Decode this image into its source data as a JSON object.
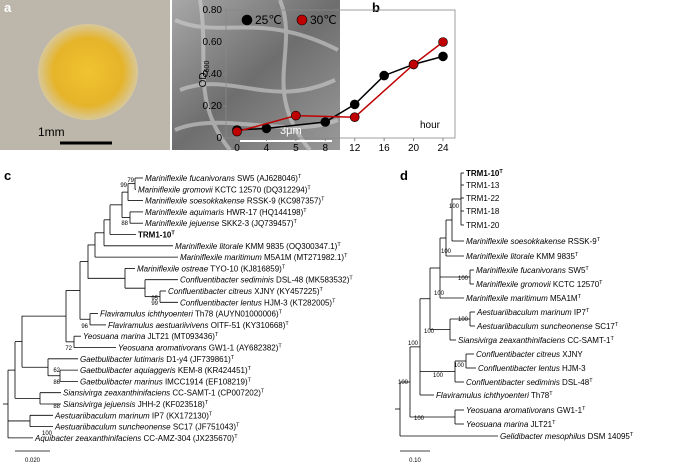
{
  "panel_labels": [
    "a",
    "b",
    "c",
    "d"
  ],
  "panel_a": {
    "scale_left": "1mm",
    "scale_right": "3μm"
  },
  "chart_data": {
    "type": "line",
    "categories": [
      "0",
      "4",
      "5",
      "8",
      "12",
      "16",
      "20",
      "24"
    ],
    "ylabel": "OD",
    "ylabel_sub": "600",
    "annotation": "hour",
    "legend": "upper left",
    "ylim": [
      0,
      0.8
    ],
    "yticks": [
      0,
      {
        "value": 0.2,
        "label": "0.20"
      },
      {
        "value": 0.4,
        "label": "0.40"
      },
      {
        "value": 0.6,
        "label": "0.60"
      },
      {
        "value": 0.8,
        "label": "0.80"
      }
    ],
    "series": [
      {
        "name": "25℃",
        "color": "#000000",
        "x": [
          "0",
          "4",
          "8",
          "12",
          "16",
          "20",
          "24"
        ],
        "values": [
          0.05,
          0.06,
          0.1,
          0.21,
          0.39,
          0.46,
          0.51
        ]
      },
      {
        "name": "30℃",
        "color": "#c00000",
        "x": [
          "0",
          "5",
          "12",
          "20",
          "24"
        ],
        "values": [
          0.04,
          0.14,
          0.13,
          0.46,
          0.6
        ]
      }
    ]
  },
  "tree_c": {
    "scale": "0.020",
    "bootstrap": [
      79,
      99,
      88,
      96,
      95,
      99,
      72,
      62,
      86,
      88,
      100
    ],
    "leaves": [
      {
        "species": "Mariniflexile fucanivorans",
        "strain": " SW5 (AJ628046)",
        "sup": "T"
      },
      {
        "species": "Mariniflexile gromovii",
        "strain": " KCTC 12570 (DQ312294)",
        "sup": "T"
      },
      {
        "species": "Mariniflexile soesokkakense",
        "strain": " RSSK-9 (KC987357)",
        "sup": "T"
      },
      {
        "species": "Mariniflexile aquimaris",
        "strain": " HWR-17 (HQ144198)",
        "sup": "T"
      },
      {
        "species": "Mariniflexile jejuense",
        "strain": " SKK2-3 (JQ739457)",
        "sup": "T"
      },
      {
        "name": "TRM1-10",
        "sup": "T",
        "bold": true
      },
      {
        "species": "Mariniflexile litorale",
        "strain": " KMM 9835 (OQ300347.1)",
        "sup": "T"
      },
      {
        "species": "Mariniflexile maritimum",
        "strain": " M5A1M (MT271982.1)",
        "sup": "T"
      },
      {
        "species": "Mariniflexile ostreae",
        "strain": " TYO-10 (KJ816859)",
        "sup": "T"
      },
      {
        "species": "Confluentibacter sediminis",
        "strain": " DSL-48 (MK583532)",
        "sup": "T"
      },
      {
        "species": "Confluentibacter citreus",
        "strain": " XJNY (KY457225)",
        "sup": "T"
      },
      {
        "species": "Confluentibacter lentus",
        "strain": " HJM-3 (KT282005)",
        "sup": "T"
      },
      {
        "species": "Flaviramulus ichthyoenteri",
        "strain": " Th78 (AUYN01000006)",
        "sup": "T"
      },
      {
        "species": "Flaviramulus aestuariivivens",
        "strain": " OITF-51 (KY310668)",
        "sup": "T"
      },
      {
        "species": "Yeosuana marina",
        "strain": " JLT21 (MT093436)",
        "sup": "T"
      },
      {
        "species": "Yeosuana aromativorans",
        "strain": " GW1-1 (AY682382)",
        "sup": "T"
      },
      {
        "species": "Gaetbulibacter lutimaris",
        "strain": " D1-y4 (JF739861)",
        "sup": "T"
      },
      {
        "species": "Gaetbulibacter aquiaggeris",
        "strain": " KEM-8 (KR424451)",
        "sup": "T"
      },
      {
        "species": "Gaetbulibacter marinus",
        "strain": " IMCC1914 (EF108219)",
        "sup": "T"
      },
      {
        "species": "Siansivirga zeaxanthinifaciens",
        "strain": " CC-SAMT-1 (CP007202)",
        "sup": "T"
      },
      {
        "species": "Siansivirga jejuensis",
        "strain": " JHH-2 (KF023518)",
        "sup": "T"
      },
      {
        "species": "Aestuariibaculum marinum",
        "strain": " IP7 (KX172130)",
        "sup": "T"
      },
      {
        "species": "Aestuariibaculum suncheonense",
        "strain": " SC17 (JF751043)",
        "sup": "T"
      },
      {
        "species": "Aquibacter zeaxanthinifaciens",
        "strain": " CC-AMZ-304 (JX235670)",
        "sup": "T"
      }
    ]
  },
  "tree_d": {
    "scale": "0.10",
    "bootstrap": [
      100,
      100,
      100,
      100,
      100,
      100,
      100,
      100,
      100,
      100,
      100
    ],
    "leaves": [
      {
        "name": "TRM1-10",
        "sup": "T",
        "bold": true
      },
      {
        "name": "TRM1-13"
      },
      {
        "name": "TRM1-22"
      },
      {
        "name": "TRM1-18"
      },
      {
        "name": "TRM1-20"
      },
      {
        "species": "Mariniflexile soesokkakense",
        "strain": " RSSK-9",
        "sup": "T"
      },
      {
        "species": "Mariniflexile litorale",
        "strain": " KMM 9835",
        "sup": "T"
      },
      {
        "species": "Mariniflexile fucanivorans",
        "strain": " SW5",
        "sup": "T"
      },
      {
        "species": "Mariniflexile gromovii",
        "strain": " KCTC 12570",
        "sup": "T"
      },
      {
        "species": "Mariniflexile maritimum",
        "strain": " M5A1M",
        "sup": "T"
      },
      {
        "species": "Aestuariibaculum marinum",
        "strain": " IP7",
        "sup": "T"
      },
      {
        "species": "Aestuariibaculum suncheonense",
        "strain": " SC17",
        "sup": "T"
      },
      {
        "species": "Siansivirga zeaxanthinifaciens",
        "strain": " CC-SAMT-1",
        "sup": "T"
      },
      {
        "species": "Confluentibacter citreus",
        "strain": " XJNY"
      },
      {
        "species": "Confluentibacter lentus",
        "strain": " HJM-3"
      },
      {
        "species": "Confluentibacter sediminis",
        "strain": " DSL-48",
        "sup": "T"
      },
      {
        "species": "Flaviramulus ichthyoenteri",
        "strain": " Th78",
        "sup": "T"
      },
      {
        "species": "Yeosuana aromativorans",
        "strain": " GW1-1",
        "sup": "T"
      },
      {
        "species": "Yeosuana marina",
        "strain": " JLT21",
        "sup": "T"
      },
      {
        "species": "Gelidibacter mesophilus",
        "strain": " DSM 14095",
        "sup": "T"
      }
    ]
  }
}
